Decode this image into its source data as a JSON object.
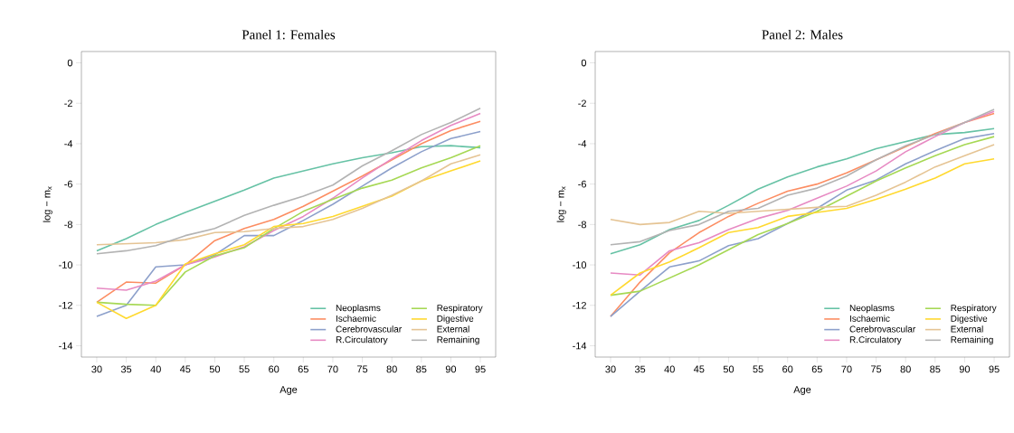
{
  "chart_data": [
    {
      "type": "line",
      "title": "Panel 1: Females",
      "xlabel": "Age",
      "ylabel": "log − m$_{x}$",
      "x": [
        30,
        35,
        40,
        45,
        50,
        55,
        60,
        65,
        70,
        75,
        80,
        85,
        90,
        95
      ],
      "xlim": [
        27.4,
        97.6
      ],
      "ylim": [
        -14.56,
        0.56
      ],
      "xticks": [
        30,
        35,
        40,
        45,
        50,
        55,
        60,
        65,
        70,
        75,
        80,
        85,
        90,
        95
      ],
      "yticks": [
        0,
        -2,
        -4,
        -6,
        -8,
        -10,
        -12,
        -14
      ],
      "legend": "bottom right",
      "grid": false,
      "line_style": "solid",
      "series": [
        {
          "name": "Neoplasms",
          "color": "#66c2a5",
          "values": [
            -9.3,
            -8.7,
            -8.0,
            -7.4,
            -6.85,
            -6.3,
            -5.7,
            -5.35,
            -5.0,
            -4.7,
            -4.45,
            -4.15,
            -4.1,
            -4.2
          ]
        },
        {
          "name": "Ischaemic",
          "color": "#fc8d62",
          "values": [
            -11.85,
            -10.85,
            -10.9,
            -10.0,
            -8.8,
            -8.2,
            -7.75,
            -7.1,
            -6.35,
            -5.6,
            -4.8,
            -4.0,
            -3.35,
            -2.9
          ]
        },
        {
          "name": "Cerebrovascular",
          "color": "#8da0cb",
          "values": [
            -12.55,
            -12.0,
            -10.1,
            -10.0,
            -9.5,
            -8.55,
            -8.55,
            -7.8,
            -7.0,
            -6.1,
            -5.2,
            -4.4,
            -3.75,
            -3.4
          ]
        },
        {
          "name": "R.Circulatory",
          "color": "#e78ac3",
          "values": [
            -11.15,
            -11.25,
            -10.8,
            -10.0,
            -9.6,
            -9.1,
            -8.3,
            -7.6,
            -6.7,
            -5.7,
            -4.75,
            -3.85,
            -3.1,
            -2.5
          ]
        },
        {
          "name": "Respiratory",
          "color": "#a6d854",
          "values": [
            -11.85,
            -11.95,
            -12.0,
            -10.35,
            -9.55,
            -9.15,
            -8.2,
            -7.35,
            -6.75,
            -6.2,
            -5.8,
            -5.2,
            -4.7,
            -4.1
          ]
        },
        {
          "name": "Digestive",
          "color": "#ffd92f",
          "values": [
            -11.85,
            -12.65,
            -12.0,
            -9.95,
            -9.45,
            -9.0,
            -8.1,
            -7.95,
            -7.6,
            -7.1,
            -6.6,
            -5.85,
            -5.35,
            -4.85
          ]
        },
        {
          "name": "External",
          "color": "#e5c494",
          "values": [
            -9.0,
            -8.95,
            -8.9,
            -8.75,
            -8.4,
            -8.35,
            -8.2,
            -8.1,
            -7.75,
            -7.2,
            -6.55,
            -5.85,
            -5.0,
            -4.55
          ]
        },
        {
          "name": "Remaining",
          "color": "#b3b3b3",
          "values": [
            -9.45,
            -9.3,
            -9.05,
            -8.55,
            -8.2,
            -7.55,
            -7.05,
            -6.6,
            -6.05,
            -5.1,
            -4.35,
            -3.55,
            -2.95,
            -2.25
          ]
        }
      ]
    },
    {
      "type": "line",
      "title": "Panel 2: Males",
      "xlabel": "Age",
      "ylabel": "log − m$_{x}$",
      "x": [
        30,
        35,
        40,
        45,
        50,
        55,
        60,
        65,
        70,
        75,
        80,
        85,
        90,
        95
      ],
      "xlim": [
        27.4,
        97.6
      ],
      "ylim": [
        -14.56,
        0.56
      ],
      "xticks": [
        30,
        35,
        40,
        45,
        50,
        55,
        60,
        65,
        70,
        75,
        80,
        85,
        90,
        95
      ],
      "yticks": [
        0,
        -2,
        -4,
        -6,
        -8,
        -10,
        -12,
        -14
      ],
      "legend": "bottom right",
      "grid": false,
      "line_style": "solid",
      "series": [
        {
          "name": "Neoplasms",
          "color": "#66c2a5",
          "values": [
            -9.45,
            -9.0,
            -8.25,
            -7.8,
            -7.05,
            -6.25,
            -5.65,
            -5.15,
            -4.75,
            -4.25,
            -3.9,
            -3.55,
            -3.45,
            -3.25
          ]
        },
        {
          "name": "Ischaemic",
          "color": "#fc8d62",
          "values": [
            -12.55,
            -10.85,
            -9.4,
            -8.4,
            -7.6,
            -6.95,
            -6.35,
            -6.0,
            -5.45,
            -4.8,
            -4.15,
            -3.5,
            -2.95,
            -2.5
          ]
        },
        {
          "name": "Cerebrovascular",
          "color": "#8da0cb",
          "values": [
            -12.55,
            -11.3,
            -10.1,
            -9.8,
            -9.05,
            -8.7,
            -7.95,
            -7.2,
            -6.3,
            -5.8,
            -5.0,
            -4.35,
            -3.75,
            -3.5
          ]
        },
        {
          "name": "R.Circulatory",
          "color": "#e78ac3",
          "values": [
            -10.4,
            -10.5,
            -9.3,
            -8.9,
            -8.25,
            -7.7,
            -7.3,
            -6.7,
            -6.1,
            -5.35,
            -4.4,
            -3.65,
            -2.95,
            -2.4
          ]
        },
        {
          "name": "Respiratory",
          "color": "#a6d854",
          "values": [
            -11.5,
            -11.3,
            -10.65,
            -10.0,
            -9.25,
            -8.5,
            -7.95,
            -7.35,
            -6.6,
            -5.85,
            -5.2,
            -4.6,
            -4.05,
            -3.65
          ]
        },
        {
          "name": "Digestive",
          "color": "#ffd92f",
          "values": [
            -11.5,
            -10.4,
            -9.85,
            -9.15,
            -8.4,
            -8.15,
            -7.6,
            -7.4,
            -7.2,
            -6.75,
            -6.25,
            -5.7,
            -5.0,
            -4.75
          ]
        },
        {
          "name": "External",
          "color": "#e5c494",
          "values": [
            -7.75,
            -8.0,
            -7.9,
            -7.35,
            -7.45,
            -7.35,
            -7.25,
            -7.15,
            -7.1,
            -6.55,
            -5.9,
            -5.15,
            -4.6,
            -4.05
          ]
        },
        {
          "name": "Remaining",
          "color": "#b3b3b3",
          "values": [
            -9.0,
            -8.85,
            -8.3,
            -8.0,
            -7.35,
            -7.2,
            -6.55,
            -6.2,
            -5.6,
            -4.8,
            -4.1,
            -3.55,
            -2.95,
            -2.3
          ]
        }
      ]
    }
  ]
}
